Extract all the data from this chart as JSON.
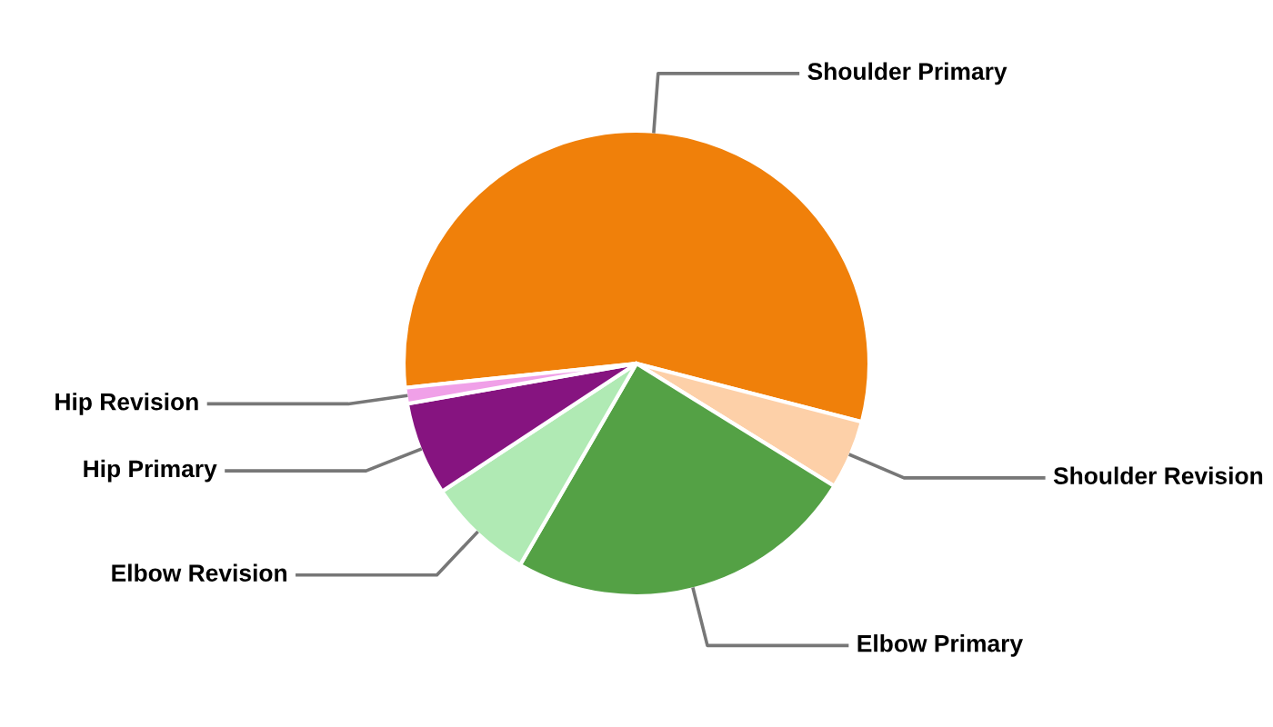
{
  "chart_data": {
    "type": "pie",
    "categories": [
      "Shoulder Primary",
      "Shoulder Revision",
      "Elbow Primary",
      "Elbow Revision",
      "Hip Primary",
      "Hip Revision"
    ],
    "values": [
      55.7,
      4.8,
      24.5,
      7.4,
      6.5,
      1.1
    ],
    "colors": [
      "#f0800a",
      "#fdd0a8",
      "#54a145",
      "#b0eab4",
      "#861480",
      "#f0a0e8"
    ],
    "legend": false
  }
}
